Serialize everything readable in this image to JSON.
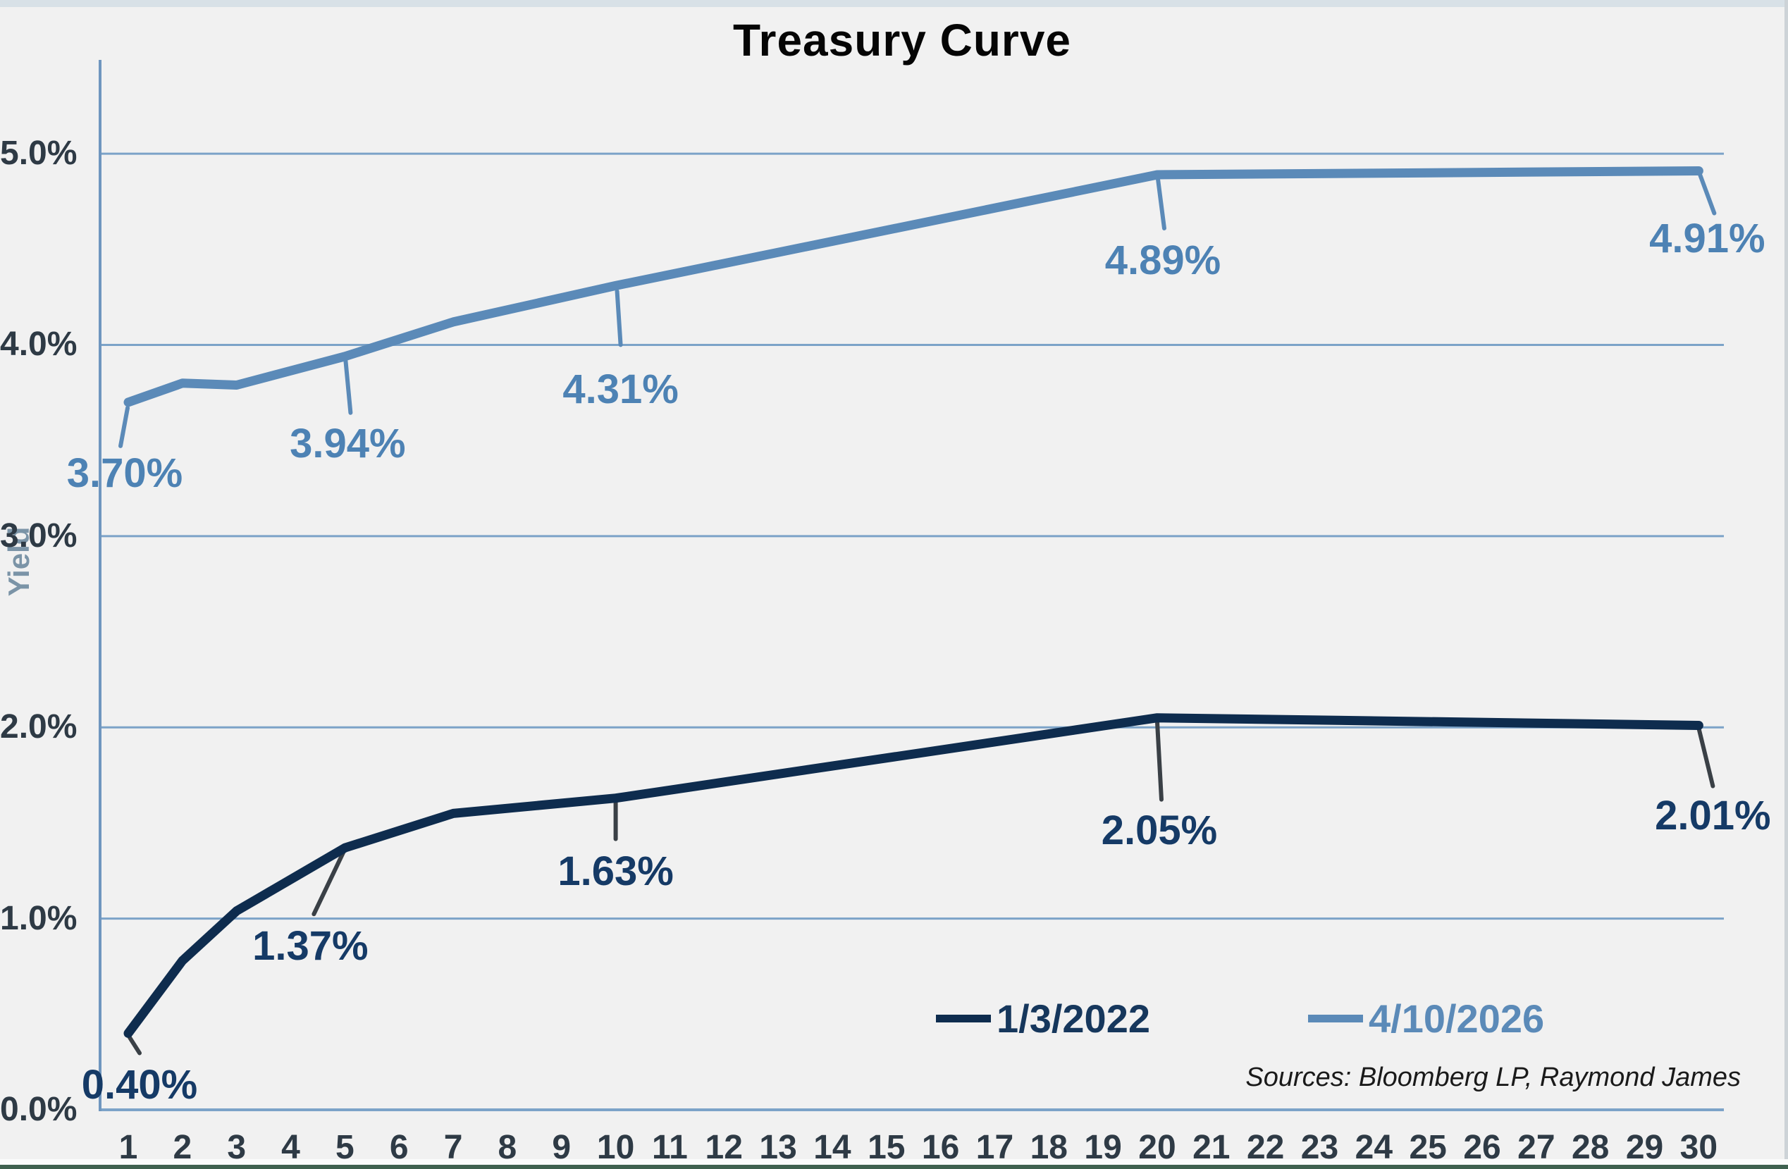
{
  "chart_data": {
    "type": "line",
    "title": "Treasury Curve",
    "ylabel": "Yield",
    "xlabel": "",
    "grid": "horizontal",
    "legend_position": "bottom-right-inside",
    "x_axis": {
      "categories": [
        "1",
        "2",
        "3",
        "4",
        "5",
        "6",
        "7",
        "8",
        "9",
        "10",
        "11",
        "12",
        "13",
        "14",
        "15",
        "16",
        "17",
        "18",
        "19",
        "20",
        "21",
        "22",
        "23",
        "24",
        "25",
        "26",
        "27",
        "28",
        "29",
        "30"
      ]
    },
    "y_axis": {
      "min": 0,
      "max": 5.5,
      "tick_values": [
        0,
        1,
        2,
        3,
        4,
        5
      ],
      "tick_labels": [
        "0.0%",
        "1.0%",
        "2.0%",
        "3.0%",
        "4.0%",
        "5.0%"
      ]
    },
    "series": [
      {
        "name": "1/3/2022",
        "color": "#0e2c4e",
        "label_color": "#153a66",
        "leader_color": "#3a4046",
        "x": [
          1,
          2,
          3,
          5,
          7,
          10,
          20,
          30
        ],
        "values": [
          0.4,
          0.78,
          1.04,
          1.37,
          1.55,
          1.63,
          2.05,
          2.01
        ],
        "point_labels": [
          {
            "x": 1,
            "text": "0.40%"
          },
          {
            "x": 5,
            "text": "1.37%"
          },
          {
            "x": 10,
            "text": "1.63%"
          },
          {
            "x": 20,
            "text": "2.05%"
          },
          {
            "x": 30,
            "text": "2.01%"
          }
        ]
      },
      {
        "name": "4/10/2026",
        "color": "#5b8ab8",
        "label_color": "#4d82b4",
        "leader_color": "#5b8ab8",
        "x": [
          1,
          2,
          3,
          5,
          7,
          10,
          20,
          30
        ],
        "values": [
          3.7,
          3.8,
          3.79,
          3.94,
          4.12,
          4.31,
          4.89,
          4.91
        ],
        "point_labels": [
          {
            "x": 1,
            "text": "3.70%"
          },
          {
            "x": 5,
            "text": "3.94%"
          },
          {
            "x": 10,
            "text": "4.31%"
          },
          {
            "x": 20,
            "text": "4.89%"
          },
          {
            "x": 30,
            "text": "4.91%"
          }
        ]
      }
    ],
    "source_note": "Sources: Bloomberg LP, Raymond James"
  },
  "style_colors": {
    "background": "#f1f1f1",
    "gridline": "#7ca3c8",
    "y_axis_line": "#6f96bf",
    "tick_text": "#2e3a45",
    "top_strip": "#d8e1e7",
    "bottom_strip": "#3e614f"
  }
}
